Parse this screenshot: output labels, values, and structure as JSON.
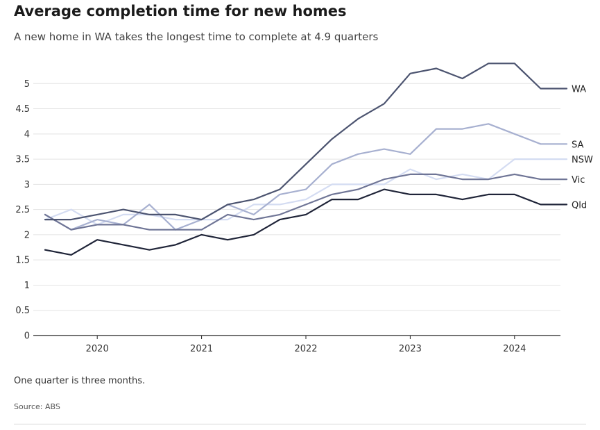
{
  "chart_data": {
    "type": "line",
    "title": "Average completion time for new homes",
    "subtitle": "A new home in WA takes the longest time to complete at 4.9 quarters",
    "xlabel": "",
    "ylabel": "",
    "x": [
      "2019 Q3",
      "2019 Q4",
      "2020 Q1",
      "2020 Q2",
      "2020 Q3",
      "2020 Q4",
      "2021 Q1",
      "2021 Q2",
      "2021 Q3",
      "2021 Q4",
      "2022 Q1",
      "2022 Q2",
      "2022 Q3",
      "2022 Q4",
      "2023 Q1",
      "2023 Q2",
      "2023 Q3",
      "2023 Q4",
      "2024 Q1",
      "2024 Q2",
      "2024 Q3"
    ],
    "x_ticks": [
      {
        "label": "2020",
        "value": "2020 Q1"
      },
      {
        "label": "2021",
        "value": "2021 Q1"
      },
      {
        "label": "2022",
        "value": "2022 Q1"
      },
      {
        "label": "2023",
        "value": "2023 Q1"
      },
      {
        "label": "2024",
        "value": "2024 Q1"
      }
    ],
    "ylim": [
      0,
      5.5
    ],
    "y_ticks": [
      0,
      0.5,
      1,
      1.5,
      2,
      2.5,
      3,
      3.5,
      4,
      4.5,
      5
    ],
    "y_tick_labels": [
      "0",
      "0.5",
      "1",
      "1.5",
      "2",
      "2.5",
      "3",
      "3.5",
      "4",
      "4.5",
      "5"
    ],
    "grid": true,
    "legend": "direct labels at line ends",
    "series": [
      {
        "name": "NSW",
        "color": "#d4dcf2",
        "values": [
          2.3,
          2.5,
          2.2,
          2.4,
          2.4,
          2.3,
          2.3,
          2.3,
          2.6,
          2.6,
          2.7,
          3.0,
          3.0,
          3.0,
          3.3,
          3.1,
          3.2,
          3.1,
          3.5,
          3.5,
          3.5
        ]
      },
      {
        "name": "SA",
        "color": "#a7b0d0",
        "values": [
          2.4,
          2.1,
          2.3,
          2.2,
          2.6,
          2.1,
          2.3,
          2.6,
          2.4,
          2.8,
          2.9,
          3.4,
          3.6,
          3.7,
          3.6,
          4.1,
          4.1,
          4.2,
          4.0,
          3.8,
          3.8
        ]
      },
      {
        "name": "Vic",
        "color": "#6f7596",
        "values": [
          2.4,
          2.1,
          2.2,
          2.2,
          2.1,
          2.1,
          2.1,
          2.4,
          2.3,
          2.4,
          2.6,
          2.8,
          2.9,
          3.1,
          3.2,
          3.2,
          3.1,
          3.1,
          3.2,
          3.1,
          3.1
        ]
      },
      {
        "name": "WA",
        "color": "#4c5470",
        "values": [
          2.3,
          2.3,
          2.4,
          2.5,
          2.4,
          2.4,
          2.3,
          2.6,
          2.7,
          2.9,
          3.4,
          3.9,
          4.3,
          4.6,
          5.2,
          5.3,
          5.1,
          5.4,
          5.4,
          4.9,
          4.9
        ]
      },
      {
        "name": "Qld",
        "color": "#1f2438",
        "values": [
          1.7,
          1.6,
          1.9,
          1.8,
          1.7,
          1.8,
          2.0,
          1.9,
          2.0,
          2.3,
          2.4,
          2.7,
          2.7,
          2.9,
          2.8,
          2.8,
          2.7,
          2.8,
          2.8,
          2.6,
          2.6
        ]
      }
    ]
  },
  "note": "One quarter is three months.",
  "source": "Source: ABS"
}
